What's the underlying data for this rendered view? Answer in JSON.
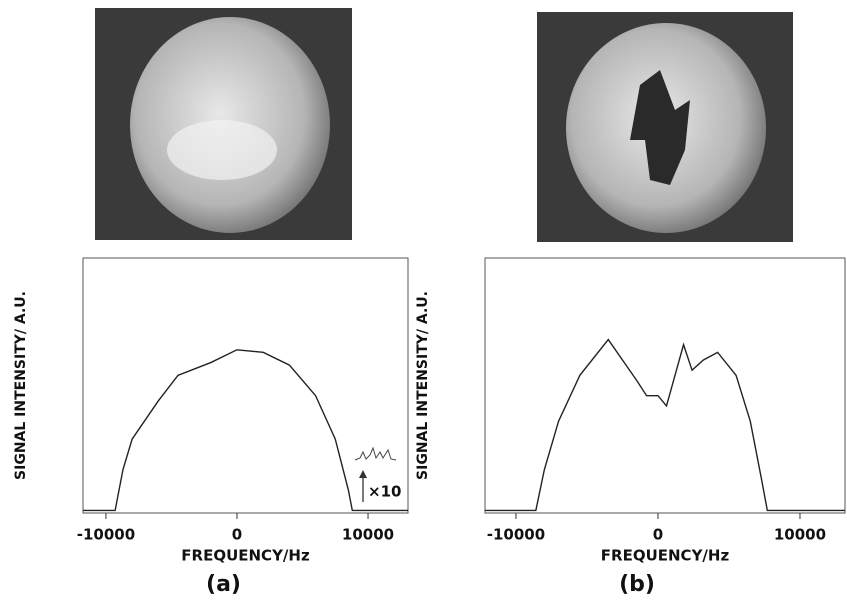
{
  "chart_data": [
    {
      "type": "line",
      "caption": "(a)",
      "xlabel": "FREQUENCY/Hz",
      "ylabel": "SIGNAL INTENSITY/ A.U.",
      "annotation": "×10",
      "xlim": [
        -11750,
        13050
      ],
      "xticks": [
        -10000,
        0,
        10000
      ],
      "ylim": [
        0,
        100
      ],
      "series": [
        {
          "color": "#222222",
          "x": [
            -11750,
            -9300,
            -8700,
            -8000,
            -6000,
            -4500,
            -2000,
            0,
            2000,
            4000,
            6000,
            7500,
            8500,
            8800,
            13050
          ],
          "values": [
            1,
            1,
            17,
            29,
            44,
            54,
            59,
            64,
            63,
            58,
            46,
            29,
            9,
            1,
            1
          ]
        }
      ]
    },
    {
      "type": "line",
      "caption": "(b)",
      "xlabel": "FREQUENCY/Hz",
      "ylabel": "SIGNAL INTENSITY/ A.U.",
      "xlim": [
        -12180,
        13170
      ],
      "xticks": [
        -10000,
        0,
        10000
      ],
      "ylim": [
        0,
        100
      ],
      "series": [
        {
          "color": "#222222",
          "x": [
            -12180,
            -8600,
            -8000,
            -7000,
            -5500,
            -3500,
            -2500,
            -1500,
            -800,
            0,
            600,
            1200,
            1800,
            2400,
            3200,
            4200,
            5500,
            6500,
            7300,
            7700,
            13170
          ],
          "values": [
            1,
            1,
            17,
            36,
            54,
            68,
            60,
            52,
            46,
            46,
            42,
            54,
            66,
            56,
            60,
            63,
            54,
            36,
            13,
            1,
            1
          ]
        }
      ]
    }
  ]
}
